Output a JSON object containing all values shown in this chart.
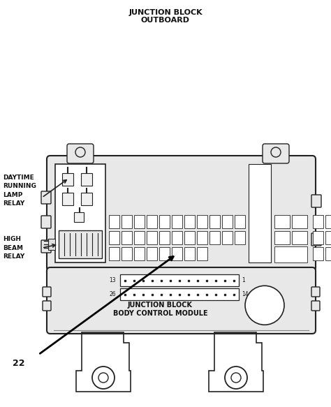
{
  "title_line1": "JUNCTION BLOCK",
  "title_line2": "OUTBOARD",
  "label_daytime": "DAYTIME\nRUNNING\nLAMP\nRELAY",
  "label_highbeam": "HIGH\nBEAM\nRELAY",
  "label_junction_block_line1": "JUNCTION BLOCK",
  "label_junction_block_line2": "BODY CONTROL MODULE",
  "label_22": "22",
  "bg_color": "#ffffff",
  "line_color": "#222222",
  "text_color": "#111111",
  "panel_fill": "#e8e8e8",
  "fuse_fill": "#ffffff",
  "relay_fill": "#ffffff"
}
